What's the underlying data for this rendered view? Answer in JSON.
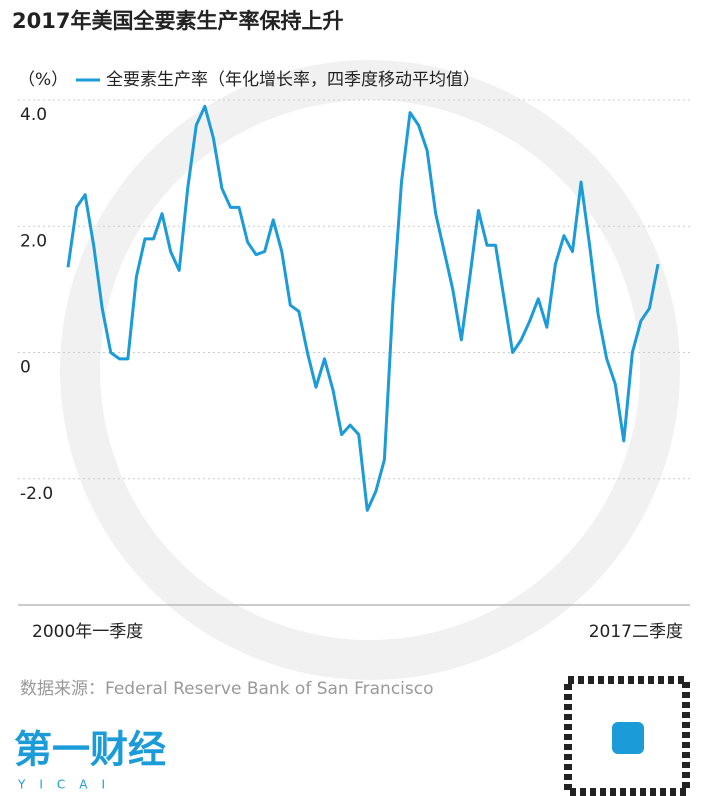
{
  "chart_data": {
    "type": "line",
    "title": "2017年美国全要素生产率保持上升",
    "y_label": "（%）",
    "categories": [
      "2000年一季度",
      null,
      null,
      null,
      null,
      null,
      null,
      null,
      null,
      null,
      null,
      null,
      null,
      null,
      null,
      null,
      null,
      null,
      null,
      null,
      null,
      null,
      null,
      null,
      null,
      null,
      null,
      null,
      null,
      null,
      null,
      null,
      null,
      null,
      null,
      null,
      null,
      null,
      null,
      null,
      null,
      null,
      null,
      null,
      null,
      null,
      null,
      null,
      null,
      null,
      null,
      null,
      null,
      null,
      null,
      null,
      null,
      null,
      null,
      null,
      null,
      null,
      null,
      null,
      null,
      null,
      null,
      null,
      null,
      "2017二季度"
    ],
    "series": [
      {
        "name": "全要素生产率（年化增长率，四季度移动平均值）",
        "color": "#1b9bd7",
        "values": [
          1.35,
          2.3,
          2.5,
          1.7,
          0.7,
          0.0,
          -0.1,
          -0.1,
          1.2,
          1.8,
          1.8,
          2.2,
          1.6,
          1.3,
          2.6,
          3.6,
          3.9,
          3.4,
          2.6,
          2.3,
          2.3,
          1.75,
          1.55,
          1.6,
          2.1,
          1.6,
          0.75,
          0.65,
          0.0,
          -0.55,
          -0.1,
          -0.6,
          -1.3,
          -1.15,
          -1.3,
          -2.5,
          -2.2,
          -1.7,
          0.8,
          2.7,
          3.8,
          3.6,
          3.2,
          2.2,
          1.6,
          1.0,
          0.2,
          1.2,
          2.25,
          1.7,
          1.7,
          0.85,
          0.0,
          0.2,
          0.5,
          0.85,
          0.4,
          1.4,
          1.85,
          1.6,
          2.7,
          1.7,
          0.6,
          -0.1,
          -0.5,
          -1.4,
          0.0,
          0.5,
          0.7,
          1.4
        ]
      }
    ],
    "ylim": [
      -4,
      4
    ],
    "yticks": [
      {
        "value": 4,
        "label": "4.0"
      },
      {
        "value": 2,
        "label": "2.0"
      },
      0,
      {
        "value": -2,
        "label": "-2.0"
      }
    ],
    "grid": true,
    "source": "数据来源：Federal Reserve Bank of San Francisco"
  },
  "branding": {
    "name": "第一财经",
    "latin": "YICAI"
  }
}
